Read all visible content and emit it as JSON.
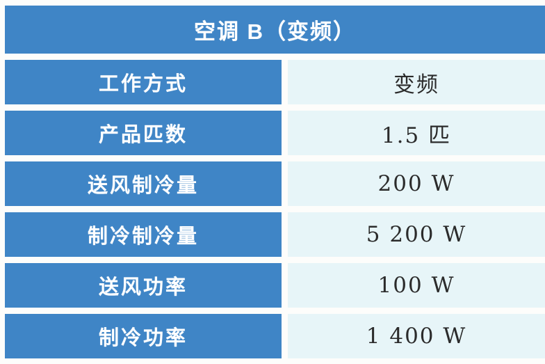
{
  "table": {
    "title": "空调 B（变频）",
    "rows": [
      {
        "label": "工作方式",
        "value": "变频"
      },
      {
        "label": "产品匹数",
        "value": "1.5 匹"
      },
      {
        "label": "送风制冷量",
        "value": "200 W"
      },
      {
        "label": "制冷制冷量",
        "value": "5 200 W"
      },
      {
        "label": "送风功率",
        "value": "100 W"
      },
      {
        "label": "制冷功率",
        "value": "1 400 W"
      }
    ],
    "colors": {
      "cell_blue": "#3f85c6",
      "cell_pale": "#e7f5f8",
      "header_text": "#ffffff",
      "value_text": "#2b2b2b"
    }
  }
}
